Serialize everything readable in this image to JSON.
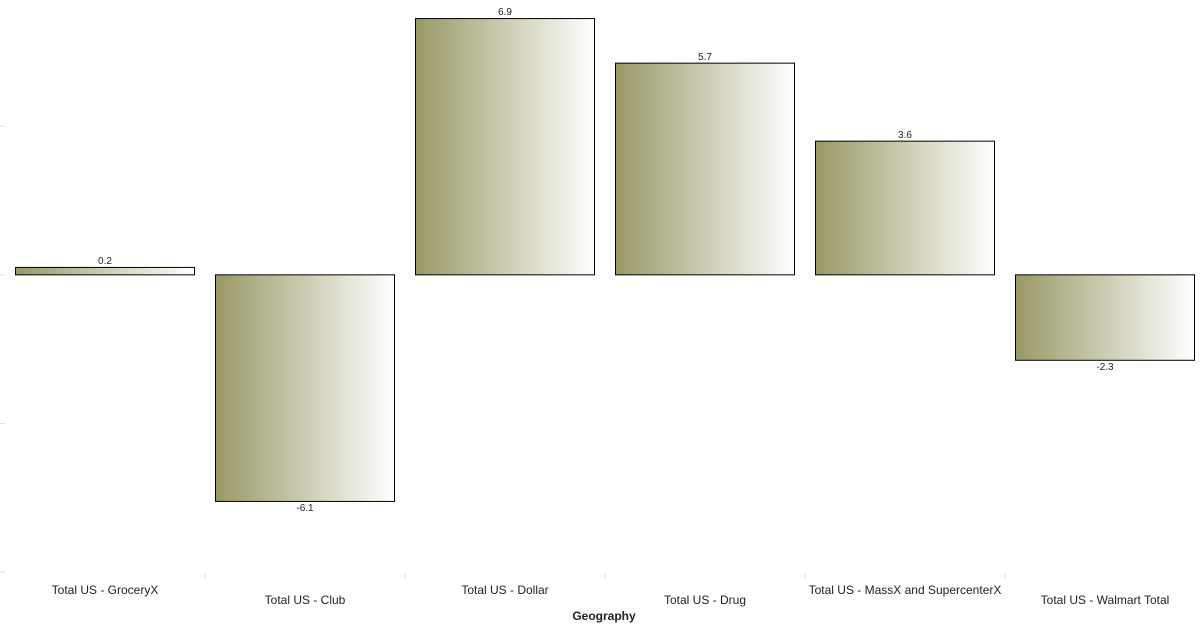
{
  "chart_data": {
    "type": "bar",
    "x_label": "Geography",
    "categories": [
      "Total US - GroceryX",
      "Total US - Club",
      "Total US - Dollar",
      "Total US - Drug",
      "Total US - MassX and SupercenterX",
      "Total US - Walmart Total"
    ],
    "values": [
      0.2,
      -6.1,
      6.9,
      5.7,
      3.6,
      -2.3
    ],
    "color": "#999966",
    "ylim": [
      -8,
      7.4
    ],
    "yticks": [
      -8,
      -4,
      0,
      4
    ]
  }
}
